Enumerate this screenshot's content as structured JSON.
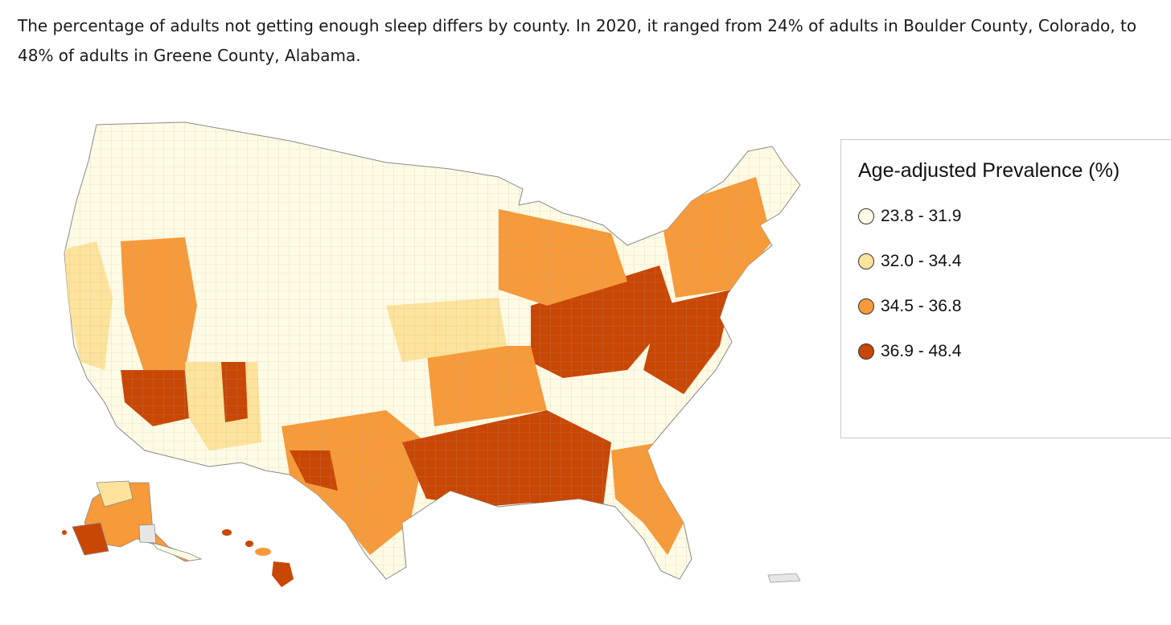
{
  "intro": {
    "text": "The percentage of adults not getting enough sleep differs by county. In 2020, it ranged from 24% of adults in Boulder County, Colorado, to 48% of adults in Greene County, Alabama."
  },
  "legend": {
    "title": "Age-adjusted Prevalence (%)",
    "items": [
      {
        "label": "23.8 - 31.9",
        "color": "#fffbe4"
      },
      {
        "label": "32.0 - 34.4",
        "color": "#fde39b"
      },
      {
        "label": "34.5 - 36.8",
        "color": "#f79a3a"
      },
      {
        "label": "36.9 - 48.4",
        "color": "#c94705"
      }
    ]
  },
  "map": {
    "no_data_color": "#e6e6e6",
    "county_border_color": "#9a9a9a"
  }
}
